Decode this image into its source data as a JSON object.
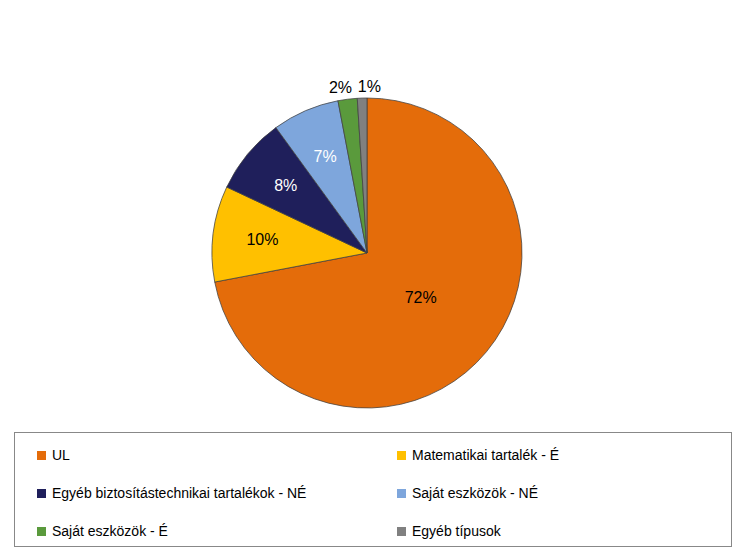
{
  "chart_data": {
    "type": "pie",
    "categories": [
      "UL",
      "Matematikai tartalék - É",
      "Egyéb biztosítástechnikai tartalékok - NÉ",
      "Saját eszközök - NÉ",
      "Saját eszközök - É",
      "Egyéb típusok"
    ],
    "values": [
      72,
      10,
      8,
      7,
      2,
      1
    ],
    "value_labels": [
      "72%",
      "10%",
      "8%",
      "7%",
      "2%",
      "1%"
    ],
    "colors": [
      "#E46C0A",
      "#FFC000",
      "#1F1F5B",
      "#7EA6DC",
      "#5A9A3C",
      "#808080"
    ],
    "data_labels": true,
    "legend": "bottom"
  }
}
